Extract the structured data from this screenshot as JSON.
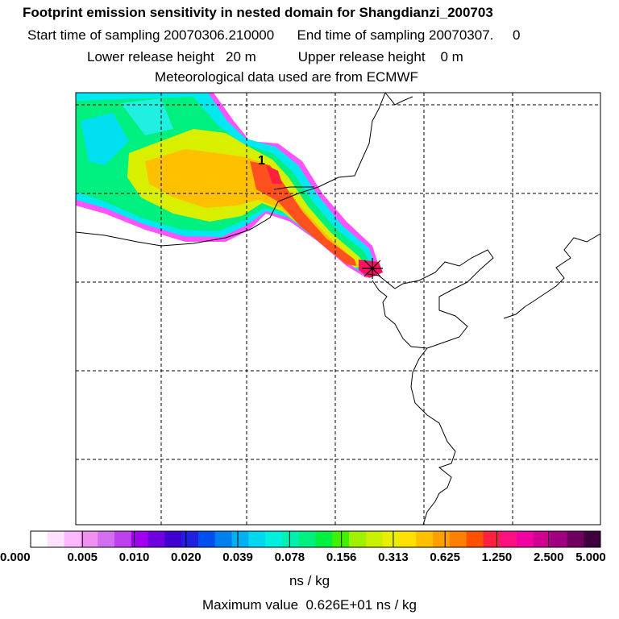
{
  "header": {
    "title": "Footprint emission sensitivity in nested domain for Shangdianzi_200703",
    "line2": "Start time of sampling 20070306.210000      End time of sampling 20070307.     0",
    "line3": "Lower release height   20 m           Upper release height    0 m",
    "line4": "Meteorological data used are from ECMWF"
  },
  "map": {
    "marker_label": "1",
    "release_marker": "star-cross-icon"
  },
  "colorbar": {
    "colors": [
      "#ffffff",
      "#ffe0ff",
      "#ffb8ff",
      "#f090f0",
      "#d070f0",
      "#c040f0",
      "#a000f0",
      "#7000e0",
      "#4000d0",
      "#2020e0",
      "#0050f0",
      "#0080f0",
      "#00b0f0",
      "#00d8f0",
      "#00f0e0",
      "#00f0b0",
      "#00f080",
      "#00f040",
      "#40f000",
      "#a0f000",
      "#c8f000",
      "#e8f000",
      "#ffe000",
      "#ffc000",
      "#ffa000",
      "#ff8000",
      "#ff5000",
      "#ff2040",
      "#ff1080",
      "#f000a0",
      "#d00090",
      "#a00080",
      "#700060",
      "#400040"
    ],
    "tick_labels": [
      "0.000",
      "0.005",
      "0.010",
      "0.020",
      "0.039",
      "0.078",
      "0.156",
      "0.313",
      "0.625",
      "1.250",
      "2.500",
      "5.000"
    ],
    "units": "ns / kg"
  },
  "footer": {
    "max_value": "Maximum value  0.626E+01 ns / kg"
  }
}
